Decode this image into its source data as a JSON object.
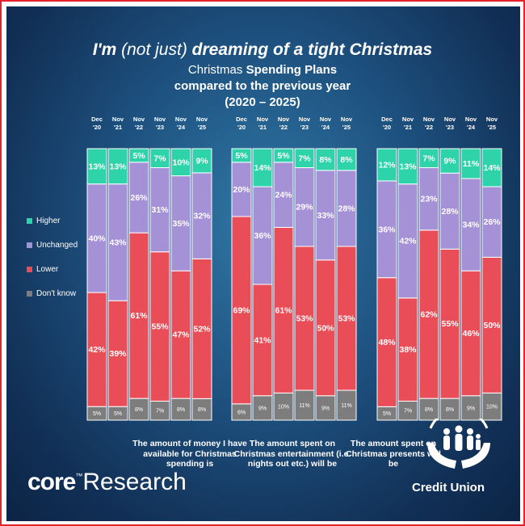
{
  "title": {
    "prefix": "I'm",
    "light": "(not just)",
    "suffix": "dreaming of a tight Christmas",
    "line2_plain": "Christmas",
    "line2_bold": "Spending Plans",
    "line3": "compared to the previous year",
    "line4": "(2020 – 2025)"
  },
  "legend": [
    {
      "label": "Higher",
      "color": "#2ed3a9"
    },
    {
      "label": "Unchanged",
      "color": "#a491d6"
    },
    {
      "label": "Lower",
      "color": "#e94d57"
    },
    {
      "label": "Don't know",
      "color": "#7d7d7d"
    }
  ],
  "chart_data": [
    {
      "type": "bar",
      "stacked": true,
      "caption": "The amount of money I have available for Christmas spending is",
      "categories": [
        "Dec '20",
        "Nov '21",
        "Nov '22",
        "Nov '23",
        "Nov '24",
        "Nov '25"
      ],
      "series": [
        {
          "name": "Don't know",
          "values": [
            5,
            5,
            8,
            7,
            8,
            8
          ]
        },
        {
          "name": "Lower",
          "values": [
            42,
            39,
            61,
            55,
            47,
            52
          ]
        },
        {
          "name": "Unchanged",
          "values": [
            40,
            43,
            26,
            31,
            35,
            32
          ]
        },
        {
          "name": "Higher",
          "values": [
            13,
            13,
            5,
            7,
            10,
            9
          ]
        }
      ]
    },
    {
      "type": "bar",
      "stacked": true,
      "caption": "The amount spent on Christmas entertainment (i.e. nights out etc.) will be",
      "categories": [
        "Dec '20",
        "Nov '21",
        "Nov '22",
        "Nov '23",
        "Nov '24",
        "Nov '25"
      ],
      "series": [
        {
          "name": "Don't know",
          "values": [
            6,
            9,
            10,
            11,
            9,
            11
          ]
        },
        {
          "name": "Lower",
          "values": [
            69,
            41,
            61,
            53,
            50,
            53
          ]
        },
        {
          "name": "Unchanged",
          "values": [
            20,
            36,
            24,
            29,
            33,
            28
          ]
        },
        {
          "name": "Higher",
          "values": [
            5,
            14,
            5,
            7,
            8,
            8
          ]
        }
      ]
    },
    {
      "type": "bar",
      "stacked": true,
      "caption": "The amount spent on Christmas presents will be",
      "categories": [
        "Dec '20",
        "Nov '21",
        "Nov '22",
        "Nov '23",
        "Nov '24",
        "Nov '25"
      ],
      "series": [
        {
          "name": "Don't know",
          "values": [
            5,
            7,
            8,
            8,
            9,
            10
          ]
        },
        {
          "name": "Lower",
          "values": [
            48,
            38,
            62,
            55,
            46,
            50
          ]
        },
        {
          "name": "Unchanged",
          "values": [
            36,
            42,
            23,
            28,
            34,
            26
          ]
        },
        {
          "name": "Higher",
          "values": [
            12,
            13,
            7,
            9,
            11,
            14
          ]
        }
      ]
    }
  ],
  "brand": {
    "core": "core",
    "tm": "™",
    "research": "Research"
  },
  "credit_union": "Credit Union"
}
